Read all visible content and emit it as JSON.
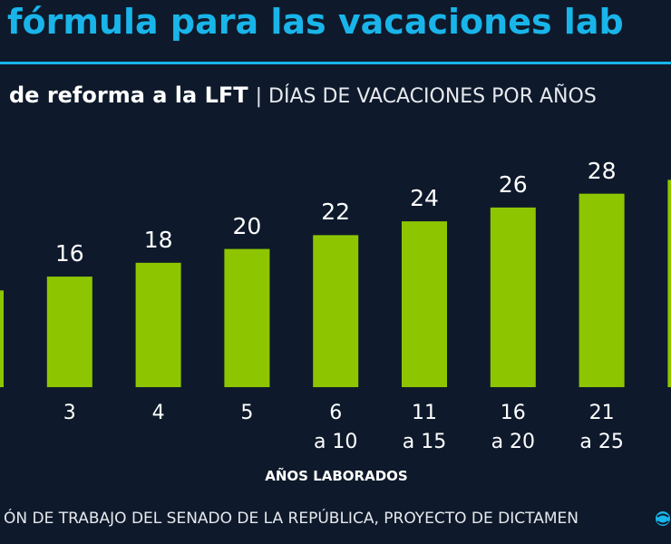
{
  "header": {
    "title": "fórmula para las vacaciones lab",
    "subtitle_bold": "de reforma a la LFT",
    "subtitle_rest": "| DÍAS DE VACACIONES POR AÑOS"
  },
  "chart_data": {
    "type": "bar",
    "categories": [
      null,
      "3",
      "4",
      "5",
      "6\na 10",
      "11\na 15",
      "16\na 20",
      "21\na 25",
      null
    ],
    "values": [
      14,
      16,
      18,
      20,
      22,
      24,
      26,
      28,
      30
    ],
    "value_labels": [
      null,
      "16",
      "18",
      "20",
      "22",
      "24",
      "26",
      "28",
      null
    ],
    "color": "#8dc600",
    "x_label": "AÑOS LABORADOS"
  },
  "source": "ÓN DE TRABAJO DEL SENADO DE LA REPÚBLICA, PROYECTO DE DICTAMEN"
}
